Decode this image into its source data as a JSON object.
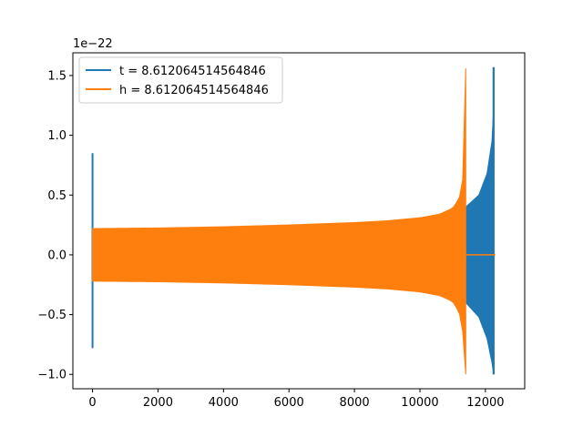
{
  "chart_data": {
    "type": "line",
    "offset_text": "1e−22",
    "x_ticks": [
      0,
      2000,
      4000,
      6000,
      8000,
      10000,
      12000
    ],
    "x_tick_labels": [
      "0",
      "2000",
      "4000",
      "6000",
      "8000",
      "10000",
      "12000"
    ],
    "y_ticks": [
      -1.0,
      -0.5,
      0.0,
      0.5,
      1.0,
      1.5
    ],
    "y_tick_labels": [
      "−1.0",
      "−0.5",
      "0.0",
      "0.5",
      "1.0",
      "1.5"
    ],
    "xlim": [
      -600,
      13200
    ],
    "ylim": [
      -1.12,
      1.69
    ],
    "legend_position": "upper-left",
    "series": [
      {
        "name": "t = 8.612064514564846",
        "color": "#1f77b4",
        "spike_x": 0,
        "spike_range": [
          -0.78,
          0.85
        ],
        "envelope_top": [
          [
            11400,
            0.4
          ],
          [
            11800,
            0.5
          ],
          [
            12050,
            0.68
          ],
          [
            12200,
            0.95
          ],
          [
            12250,
            1.22
          ]
        ],
        "envelope_bottom": [
          [
            11400,
            -0.4
          ],
          [
            11800,
            -0.52
          ],
          [
            12050,
            -0.7
          ],
          [
            12200,
            -0.9
          ],
          [
            12250,
            -1.0
          ]
        ],
        "chirp_peak_x": 12250,
        "chirp_peak_range": [
          -1.0,
          1.57
        ]
      },
      {
        "name": "h = 8.612064514564846",
        "color": "#ff7f0e",
        "envelope_top": [
          [
            0,
            0.22
          ],
          [
            2000,
            0.225
          ],
          [
            4000,
            0.235
          ],
          [
            6000,
            0.25
          ],
          [
            8000,
            0.27
          ],
          [
            9000,
            0.285
          ],
          [
            10000,
            0.31
          ],
          [
            10600,
            0.34
          ],
          [
            11000,
            0.39
          ],
          [
            11200,
            0.47
          ],
          [
            11320,
            0.65
          ],
          [
            11380,
            1.0
          ],
          [
            11400,
            1.56
          ]
        ],
        "envelope_bottom": [
          [
            0,
            -0.22
          ],
          [
            2000,
            -0.225
          ],
          [
            4000,
            -0.235
          ],
          [
            6000,
            -0.25
          ],
          [
            8000,
            -0.27
          ],
          [
            9000,
            -0.285
          ],
          [
            10000,
            -0.31
          ],
          [
            10600,
            -0.34
          ],
          [
            11000,
            -0.39
          ],
          [
            11200,
            -0.48
          ],
          [
            11320,
            -0.66
          ],
          [
            11380,
            -0.95
          ],
          [
            11400,
            -1.0
          ]
        ],
        "flat_after": [
          11400,
          12300
        ],
        "flat_value": 0.0
      }
    ]
  }
}
